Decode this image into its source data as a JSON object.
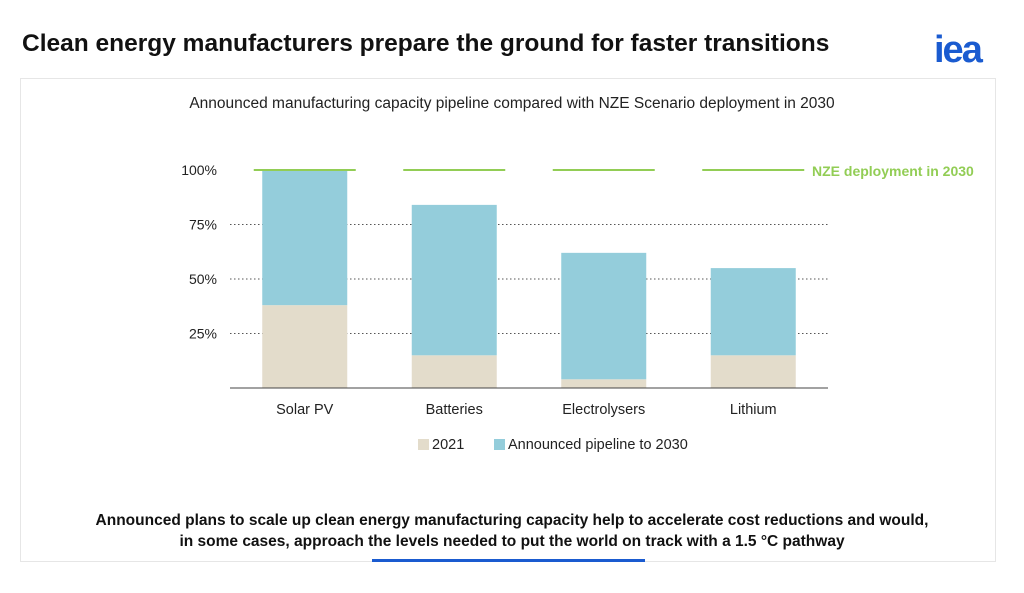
{
  "header": {
    "title": "Clean energy manufacturers prepare the ground for faster transitions",
    "logo_text": "iea"
  },
  "colors": {
    "base": "#e3dccb",
    "pipeline": "#94cddb",
    "nze": "#92cd55",
    "brand": "#1a5bd0",
    "gridline": "#555555"
  },
  "chart_data": {
    "type": "bar",
    "stacked": true,
    "title": "Announced manufacturing capacity pipeline compared with NZE Scenario deployment in 2030",
    "categories": [
      "Solar PV",
      "Batteries",
      "Electrolysers",
      "Lithium"
    ],
    "series": [
      {
        "name": "2021",
        "values": [
          38,
          15,
          4,
          15
        ],
        "color": "#e3dccb"
      },
      {
        "name": "Announced pipeline to 2030",
        "values": [
          62,
          69,
          58,
          40
        ],
        "color": "#94cddb"
      }
    ],
    "reference": {
      "label": "NZE deployment in 2030",
      "value": 100,
      "color": "#92cd55"
    },
    "yticks": [
      25,
      50,
      75,
      100
    ],
    "ytick_labels": [
      "25%",
      "50%",
      "75%",
      "100%"
    ],
    "ylim": [
      0,
      100
    ],
    "grid": "horizontal-dotted",
    "legend": "bottom-center"
  },
  "caption": {
    "line1": "Announced plans to scale up clean energy manufacturing capacity help to accelerate cost reductions and would,",
    "line2": "in some cases, approach the levels needed to put the world on track with a 1.5 °C pathway"
  }
}
